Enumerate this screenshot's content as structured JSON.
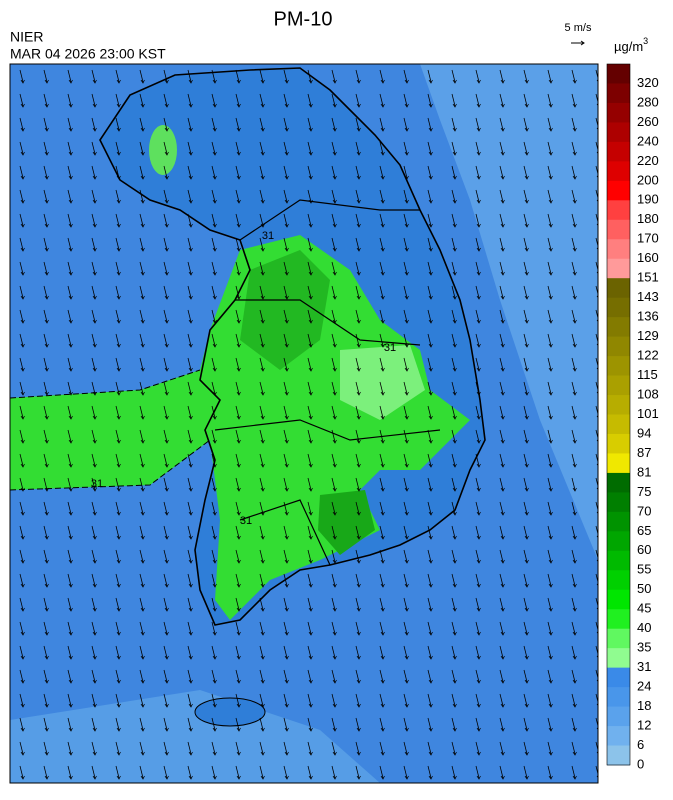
{
  "header": {
    "title": "PM-10",
    "agency": "NIER",
    "time": "MAR 04 2026 23:00 KST",
    "wind_scale": "5 m/s"
  },
  "legend": {
    "unit": "µg/m",
    "unit_power": "3",
    "levels": [
      320,
      280,
      260,
      240,
      220,
      200,
      190,
      180,
      170,
      160,
      151,
      143,
      136,
      129,
      122,
      115,
      108,
      101,
      94,
      87,
      81,
      75,
      70,
      65,
      60,
      55,
      50,
      45,
      40,
      35,
      31,
      24,
      18,
      12,
      6,
      0
    ],
    "colors": [
      "#640000",
      "#7d0000",
      "#950000",
      "#ad0000",
      "#c50000",
      "#de0000",
      "#ff0000",
      "#ff4040",
      "#ff6060",
      "#ff7f7f",
      "#ff9a9a",
      "#6b6300",
      "#766e00",
      "#837b00",
      "#908700",
      "#9d9400",
      "#aaa000",
      "#b7ad00",
      "#c6bb00",
      "#d8cd00",
      "#f0e800",
      "#006c00",
      "#007f00",
      "#009300",
      "#00a600",
      "#00ba00",
      "#00d000",
      "#00e600",
      "#20f020",
      "#60f860",
      "#90fc90",
      "#3a8ae8",
      "#4996ea",
      "#5aa2ec",
      "#70b1ee",
      "#8cc3ea"
    ]
  },
  "map": {
    "contour_labels": [
      31,
      31,
      31,
      31
    ]
  }
}
